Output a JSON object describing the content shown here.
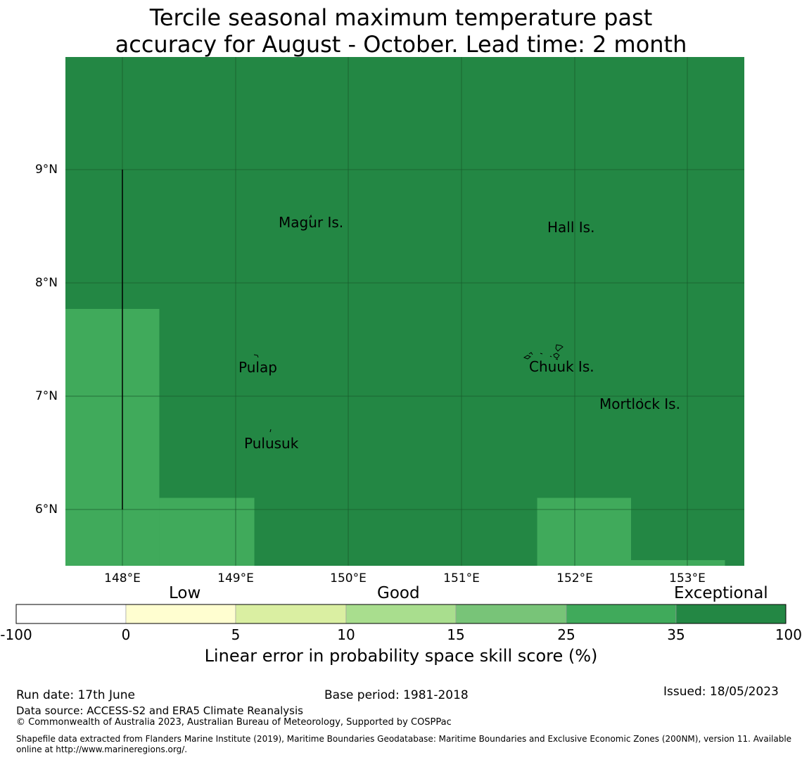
{
  "title_line1": "Tercile seasonal maximum temperature past",
  "title_line2": "accuracy for August - October. Lead time: 2 month",
  "colors": {
    "exceptional": "#238744",
    "very_good": "#40aa5b",
    "gridline": "#1a5c2c",
    "bands": [
      "#ffffff",
      "#fffed0",
      "#daefa2",
      "#a9de8e",
      "#78c478",
      "#40aa5b",
      "#238744"
    ]
  },
  "lat_ticks": [
    "9°N",
    "8°N",
    "7°N",
    "6°N"
  ],
  "lon_ticks": [
    "148°E",
    "149°E",
    "150°E",
    "151°E",
    "152°E",
    "153°E"
  ],
  "places": {
    "magur": "Magur Is.",
    "hall": "Hall Is.",
    "pulap": "Pulap",
    "chuuk": "Chuuk Is.",
    "mortlock": "Mortlock Is.",
    "pulusuk": "Pulusuk"
  },
  "map_cells": [
    {
      "lon_min": 147.5,
      "lon_max": 148.33,
      "lat_min": 5.5,
      "lat_max": 7.77,
      "category": "very_good"
    },
    {
      "lon_min": 148.33,
      "lon_max": 149.17,
      "lat_min": 5.5,
      "lat_max": 6.1,
      "category": "very_good"
    },
    {
      "lon_min": 151.67,
      "lon_max": 152.5,
      "lat_min": 5.5,
      "lat_max": 6.1,
      "category": "very_good"
    },
    {
      "lon_min": 152.5,
      "lon_max": 153.33,
      "lat_min": 5.5,
      "lat_max": 5.55,
      "category": "very_good"
    }
  ],
  "legend": {
    "categories": {
      "low": "Low",
      "good": "Good",
      "exceptional": "Exceptional"
    },
    "ticks": [
      "-100",
      "0",
      "5",
      "10",
      "15",
      "25",
      "35",
      "100"
    ],
    "label": "Linear error in probability space skill score (%)"
  },
  "footer": {
    "run_date": "Run date: 17th June",
    "base_period": "Base period: 1981-2018",
    "issued": "Issued: 18/05/2023",
    "data_source": "Data source: ACCESS-S2 and ERA5 Climate Reanalysis",
    "copyright": "© Commonwealth of Australia 2023, Australian Bureau of Meteorology, Supported by COSPPac",
    "shapefile_line1": "Shapefile data extracted from Flanders Marine Institute (2019), Maritime Boundaries Geodatabase: Maritime Boundaries and Exclusive Economic Zones (200NM), version 11. Available",
    "shapefile_line2": "online at http://www.marineregions.org/."
  }
}
